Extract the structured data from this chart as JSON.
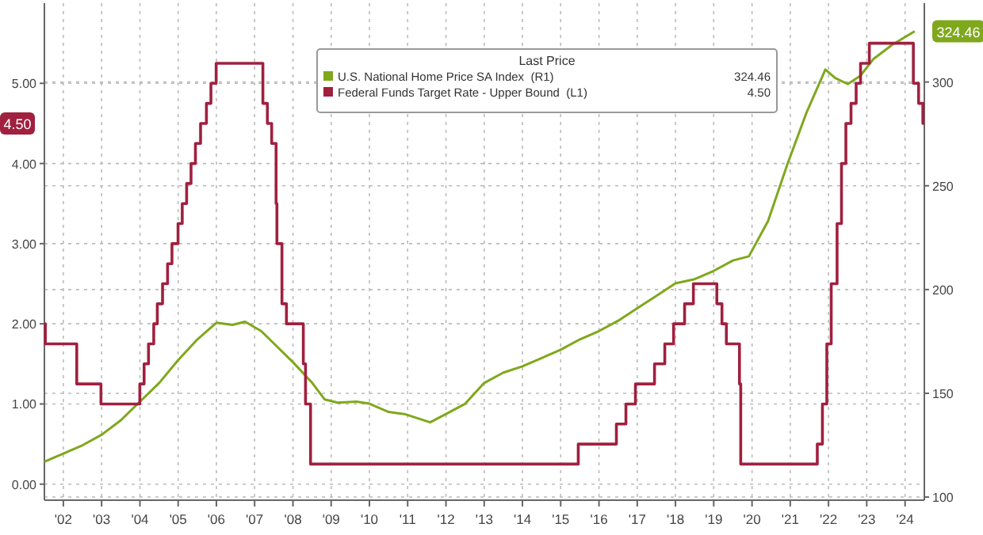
{
  "chart_data": {
    "type": "line",
    "legend_title": "Last Price",
    "legend": "top",
    "grid": true,
    "xlim": [
      "2002-01-01",
      "2025-01-01"
    ],
    "xticks": [
      {
        "value": "2002-07-01",
        "label": "'02"
      },
      {
        "value": "2003-07-01",
        "label": "'03"
      },
      {
        "value": "2004-07-01",
        "label": "'04"
      },
      {
        "value": "2005-07-01",
        "label": "'05"
      },
      {
        "value": "2006-07-01",
        "label": "'06"
      },
      {
        "value": "2007-07-01",
        "label": "'07"
      },
      {
        "value": "2008-07-01",
        "label": "'08"
      },
      {
        "value": "2009-07-01",
        "label": "'09"
      },
      {
        "value": "2010-07-01",
        "label": "'10"
      },
      {
        "value": "2011-07-01",
        "label": "'11"
      },
      {
        "value": "2012-07-01",
        "label": "'12"
      },
      {
        "value": "2013-07-01",
        "label": "'13"
      },
      {
        "value": "2014-07-01",
        "label": "'14"
      },
      {
        "value": "2015-07-01",
        "label": "'15"
      },
      {
        "value": "2016-07-01",
        "label": "'16"
      },
      {
        "value": "2017-07-01",
        "label": "'17"
      },
      {
        "value": "2018-07-01",
        "label": "'18"
      },
      {
        "value": "2019-07-01",
        "label": "'19"
      },
      {
        "value": "2020-07-01",
        "label": "'20"
      },
      {
        "value": "2021-07-01",
        "label": "'21"
      },
      {
        "value": "2022-07-01",
        "label": "'22"
      },
      {
        "value": "2023-07-01",
        "label": "'23"
      },
      {
        "value": "2024-07-01",
        "label": "'24"
      }
    ],
    "ylim": [
      -0.2,
      6.0
    ],
    "yticks": [
      {
        "value": 0,
        "label": "0.00"
      },
      {
        "value": 1,
        "label": "1.00"
      },
      {
        "value": 2,
        "label": "2.00"
      },
      {
        "value": 3,
        "label": "3.00"
      },
      {
        "value": 4,
        "label": "4.00"
      },
      {
        "value": 5,
        "label": "5.00"
      }
    ],
    "y2lim": [
      98.5,
      338
    ],
    "y2ticks": [
      100,
      150,
      200,
      250,
      300
    ],
    "annotations": [
      "324.46",
      "4.50"
    ],
    "series": [
      {
        "name": "U.S. National Home Price SA Index  (R1)",
        "color": "#7fa81c",
        "axis": "y2",
        "x": [
          "2002-01",
          "2002-07",
          "2003-01",
          "2003-07",
          "2004-01",
          "2004-07",
          "2005-01",
          "2005-07",
          "2006-01",
          "2006-07",
          "2006-12",
          "2007-04",
          "2007-09",
          "2008-01",
          "2008-07",
          "2009-01",
          "2009-05",
          "2009-09",
          "2010-03",
          "2010-07",
          "2011-01",
          "2011-06",
          "2012-02",
          "2012-07",
          "2013-01",
          "2013-07",
          "2014-01",
          "2014-07",
          "2015-01",
          "2015-07",
          "2016-01",
          "2016-07",
          "2017-01",
          "2017-07",
          "2018-01",
          "2018-07",
          "2019-01",
          "2019-07",
          "2020-01",
          "2020-06",
          "2020-12",
          "2021-06",
          "2021-12",
          "2022-06",
          "2022-09",
          "2023-01",
          "2023-05",
          "2023-09",
          "2024-03",
          "2024-10"
        ],
        "values": [
          117,
          121,
          125,
          130,
          137,
          146,
          155,
          166,
          176,
          184,
          183,
          184.5,
          180,
          174,
          165,
          155,
          147,
          145.5,
          146,
          145,
          141,
          140,
          136,
          140,
          145,
          155,
          160,
          163,
          167,
          171,
          176,
          180,
          185,
          191,
          197,
          203,
          205,
          209,
          214,
          216,
          233,
          260,
          285,
          306,
          302,
          299,
          303,
          311,
          318,
          324.46
        ]
      },
      {
        "name": "Federal Funds Target Rate - Upper Bound  (L1)",
        "color": "#a0203f",
        "type": "step",
        "x": [
          "2002-01-01",
          "2002-01-10",
          "2002-11-06",
          "2003-06-25",
          "2004-06-30",
          "2004-08-10",
          "2004-09-21",
          "2004-11-10",
          "2004-12-14",
          "2005-02-02",
          "2005-03-22",
          "2005-05-03",
          "2005-06-30",
          "2005-08-09",
          "2005-09-20",
          "2005-11-01",
          "2005-12-13",
          "2006-01-31",
          "2006-03-28",
          "2006-05-10",
          "2006-06-29",
          "2007-09-18",
          "2007-10-31",
          "2007-12-11",
          "2008-01-22",
          "2008-01-30",
          "2008-03-18",
          "2008-04-30",
          "2008-10-08",
          "2008-10-29",
          "2008-12-16",
          "2015-12-16",
          "2016-12-14",
          "2017-03-15",
          "2017-06-14",
          "2017-12-13",
          "2018-03-21",
          "2018-06-13",
          "2018-09-26",
          "2018-12-19",
          "2019-07-31",
          "2019-09-18",
          "2019-10-30",
          "2020-03-03",
          "2020-03-15",
          "2022-03-16",
          "2022-05-04",
          "2022-06-15",
          "2022-07-27",
          "2022-09-21",
          "2022-11-02",
          "2022-12-14",
          "2023-02-01",
          "2023-03-22",
          "2023-05-03",
          "2023-07-26",
          "2024-09-18",
          "2024-11-07",
          "2024-12-18",
          "2024-12-31"
        ],
        "values": [
          2.0,
          1.75,
          1.25,
          1.0,
          1.25,
          1.5,
          1.75,
          2.0,
          2.25,
          2.5,
          2.75,
          3.0,
          3.25,
          3.5,
          3.75,
          4.0,
          4.25,
          4.5,
          4.75,
          5.0,
          5.25,
          4.75,
          4.5,
          4.25,
          3.5,
          3.0,
          2.25,
          2.0,
          1.5,
          1.0,
          0.25,
          0.5,
          0.75,
          1.0,
          1.25,
          1.5,
          1.75,
          2.0,
          2.25,
          2.5,
          2.25,
          2.0,
          1.75,
          1.25,
          0.25,
          0.5,
          1.0,
          1.75,
          2.5,
          3.25,
          4.0,
          4.5,
          4.75,
          5.0,
          5.25,
          5.5,
          5.0,
          4.75,
          4.5,
          4.5
        ]
      }
    ]
  }
}
